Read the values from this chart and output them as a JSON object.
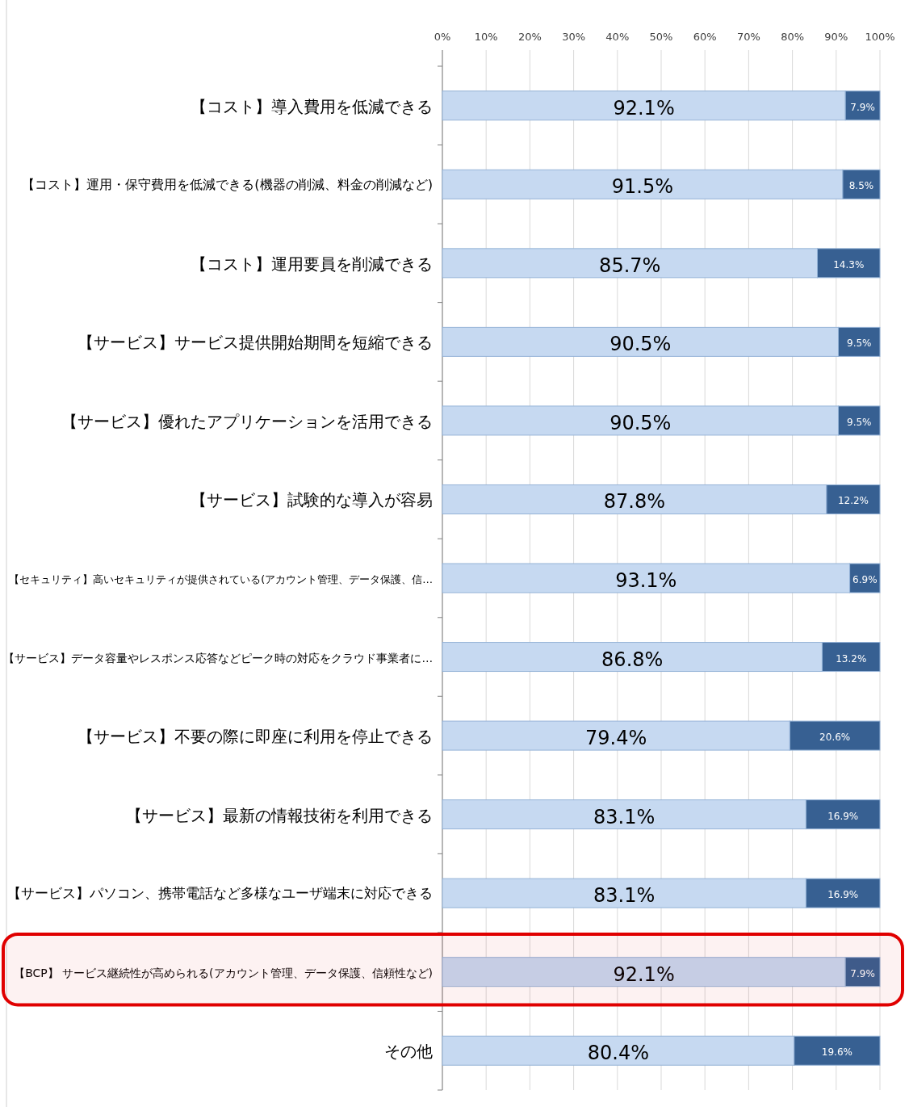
{
  "chart_data": {
    "type": "bar",
    "orientation": "horizontal",
    "stacked": true,
    "grid": "x",
    "categories": [
      "【コスト】導入費用を低減できる",
      "【コスト】運用・保守費用を低減できる(機器の削減、料金の削減など)",
      "【コスト】運用要員を削減できる",
      "【サービス】サービス提供開始期間を短縮できる",
      "【サービス】優れたアプリケーションを活用できる",
      "【サービス】試験的な導入が容易",
      "【セキュリティ】高いセキュリティが提供されている(アカウント管理、データ保護、信…",
      "【サービス】データ容量やレスポンス応答などピーク時の対応をクラウド事業者に…",
      "【サービス】不要の際に即座に利用を停止できる",
      "【サービス】最新の情報技術を利用できる",
      "【サービス】パソコン、携帯電話など多様なユーザ端末に対応できる",
      "【BCP】 サービス継続性が高められる(アカウント管理、データ保護、信頼性など)",
      "その他"
    ],
    "series": [
      {
        "color": "#c6d9f1",
        "values": [
          92.1,
          91.5,
          85.7,
          90.5,
          90.5,
          87.8,
          93.1,
          86.8,
          79.4,
          83.1,
          83.1,
          92.1,
          80.4
        ],
        "value_labels": [
          "92.1%",
          "91.5%",
          "85.7%",
          "90.5%",
          "90.5%",
          "87.8%",
          "93.1%",
          "86.8%",
          "79.4%",
          "83.1%",
          "83.1%",
          "92.1%",
          "80.4%"
        ]
      },
      {
        "color": "#376092",
        "values": [
          7.9,
          8.5,
          14.3,
          9.5,
          9.5,
          12.2,
          6.9,
          13.2,
          20.6,
          16.9,
          16.9,
          7.9,
          19.6
        ],
        "value_labels": [
          "7.9%",
          "8.5%",
          "14.3%",
          "9.5%",
          "9.5%",
          "12.2%",
          "6.9%",
          "13.2%",
          "20.6%",
          "16.9%",
          "16.9%",
          "7.9%",
          "19.6%"
        ]
      }
    ],
    "xlim": [
      0,
      100
    ],
    "xticks": [
      {
        "value": 0,
        "label": "0%"
      },
      {
        "value": 10,
        "label": "10%"
      },
      {
        "value": 20,
        "label": "20%"
      },
      {
        "value": 30,
        "label": "30%"
      },
      {
        "value": 40,
        "label": "40%"
      },
      {
        "value": 50,
        "label": "50%"
      },
      {
        "value": 60,
        "label": "60%"
      },
      {
        "value": 70,
        "label": "70%"
      },
      {
        "value": 80,
        "label": "80%"
      },
      {
        "value": 90,
        "label": "90%"
      },
      {
        "value": 100,
        "label": "100%"
      }
    ],
    "bands": [
      {
        "axis": "y",
        "from": "【BCP】 サービス継続性が高められる(アカウント管理、データ保護、信頼性など)",
        "to": "【BCP】 サービス継続性が高められる(アカウント管理、データ保護、信頼性など)",
        "color": "#e00000"
      }
    ]
  }
}
